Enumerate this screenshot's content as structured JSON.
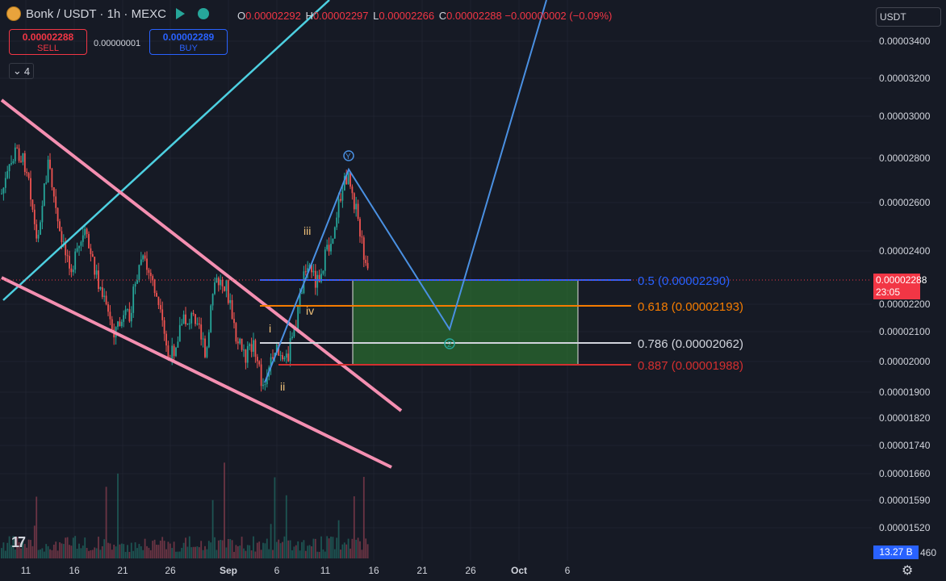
{
  "header": {
    "symbol_title": "Bonk / USDT · 1h · MEXC",
    "ohlc": {
      "o_label": "O",
      "o_value": "0.00002292",
      "h_label": "H",
      "h_value": "0.00002297",
      "l_label": "L",
      "l_value": "0.00002266",
      "c_label": "C",
      "c_value": "0.00002288",
      "change": "−0.00000002 (−0.09%)"
    }
  },
  "trade": {
    "sell_price": "0.00002288",
    "sell_label": "SELL",
    "spread": "0.00000001",
    "buy_price": "0.00002289",
    "buy_label": "BUY"
  },
  "indicators_toggle": {
    "count": "4"
  },
  "currency_selector": {
    "value": "USDT"
  },
  "price_axis": {
    "labels": [
      "0.00003400",
      "0.00003200",
      "0.00003000",
      "0.00002800",
      "0.00002600",
      "0.00002400",
      "0.00002200",
      "0.00002100",
      "0.00002000",
      "0.00001900",
      "0.00001820",
      "0.00001740",
      "0.00001660",
      "0.00001590",
      "0.00001520",
      "460"
    ],
    "current_price": "0.00002288",
    "countdown": "23:05",
    "volume_tag": "13.27 B"
  },
  "time_axis": {
    "labels": [
      "11",
      "16",
      "21",
      "26",
      "Sep",
      "6",
      "11",
      "16",
      "21",
      "26",
      "Oct",
      "6"
    ]
  },
  "fib_levels": [
    {
      "ratio": "0.5",
      "value": "(0.00002290)",
      "color": "#2962ff"
    },
    {
      "ratio": "0.618",
      "value": "(0.00002193)",
      "color": "#f57c00"
    },
    {
      "ratio": "0.786",
      "value": "(0.00002062)",
      "color": "#d1d4dc"
    },
    {
      "ratio": "0.887",
      "value": "(0.00001988)",
      "color": "#d32f2f"
    }
  ],
  "wave_labels": {
    "i": "i",
    "ii": "ii",
    "iii": "iii",
    "iv": "iv",
    "y": "Y",
    "two": "2"
  },
  "chart_data": {
    "type": "candlestick",
    "symbol": "Bonk / USDT",
    "interval": "1h",
    "exchange": "MEXC",
    "x_ticks": [
      "11",
      "16",
      "21",
      "26",
      "Sep",
      "6",
      "11",
      "16",
      "21",
      "26",
      "Oct",
      "6"
    ],
    "y_ticks": [
      3.4e-05,
      3.2e-05,
      3e-05,
      2.8e-05,
      2.6e-05,
      2.4e-05,
      2.2e-05,
      2.1e-05,
      2e-05,
      1.9e-05,
      1.82e-05,
      1.74e-05,
      1.66e-05,
      1.59e-05,
      1.52e-05
    ],
    "last_price": 2.288e-05,
    "fib_retracement": [
      {
        "ratio": 0.5,
        "price": 2.29e-05
      },
      {
        "ratio": 0.618,
        "price": 2.193e-05
      },
      {
        "ratio": 0.786,
        "price": 2.062e-05
      },
      {
        "ratio": 0.887,
        "price": 1.988e-05
      }
    ],
    "colors": {
      "up": "#26a69a",
      "down": "#ef5350",
      "background": "#161a25",
      "zone": "#2e7d32"
    }
  }
}
